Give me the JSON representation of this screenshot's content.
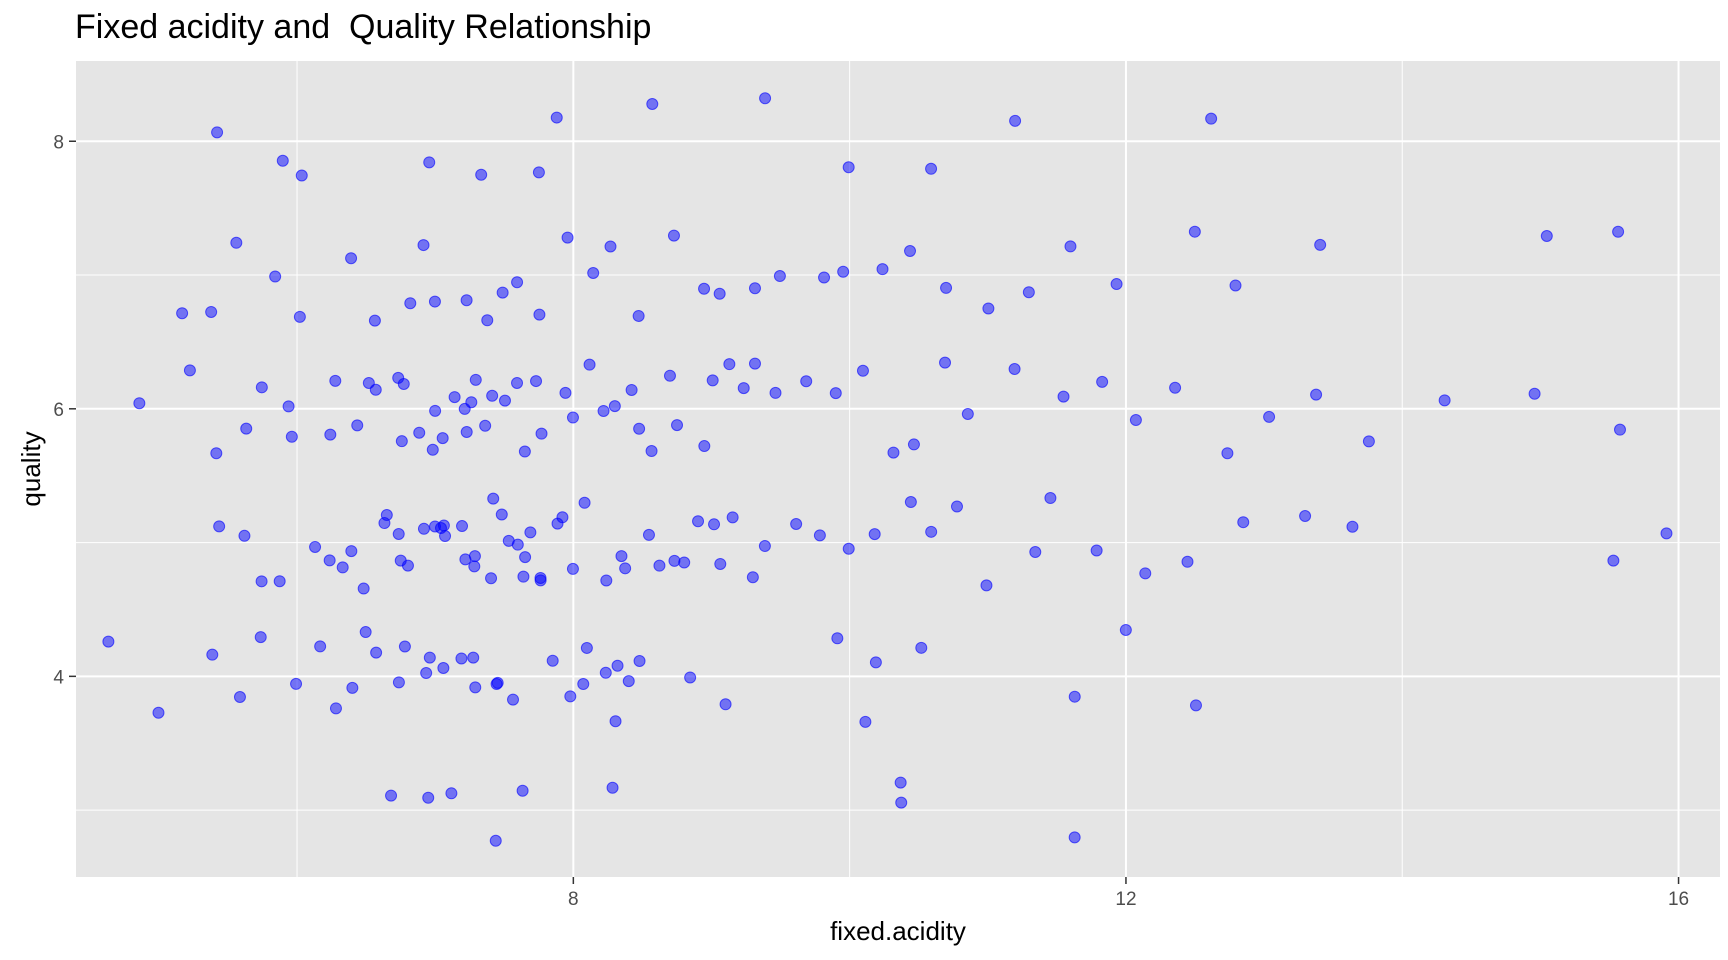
{
  "chart_data": {
    "type": "scatter",
    "title": "Fixed acidity and  Quality Relationship",
    "xlabel": "fixed.acidity",
    "ylabel": "quality",
    "xlim": [
      4.4,
      16.3
    ],
    "ylim": [
      2.5,
      8.6
    ],
    "x_ticks": [
      8,
      12,
      16
    ],
    "y_ticks": [
      4,
      6,
      8
    ],
    "grid": true,
    "panel_background": "#e5e5e5",
    "grid_color": "#ffffff",
    "point_color": "#0000ff",
    "point_opacity": 0.5,
    "jitter": 0.35,
    "note_on_points": "Integer quality scores drawn with vertical jitter; x values estimated from the plot.",
    "series": [
      {
        "y_level": 3,
        "x": [
          6.7,
          6.9,
          7.1,
          7.4,
          7.6,
          8.3,
          10.4,
          10.4,
          11.6
        ]
      },
      {
        "y_level": 4,
        "x": [
          4.6,
          5.0,
          5.4,
          5.6,
          5.7,
          6.0,
          6.2,
          6.3,
          6.4,
          6.5,
          6.6,
          6.7,
          6.8,
          6.9,
          7.0,
          7.1,
          7.2,
          7.3,
          7.3,
          7.4,
          7.5,
          7.6,
          7.9,
          8.0,
          8.1,
          8.1,
          8.2,
          8.3,
          8.3,
          8.4,
          8.5,
          8.8,
          9.1,
          9.9,
          10.1,
          10.2,
          10.5,
          11.6,
          12.0,
          12.5
        ]
      },
      {
        "y_level": 5,
        "x": [
          5.4,
          5.6,
          5.7,
          5.9,
          6.1,
          6.2,
          6.3,
          6.4,
          6.5,
          6.6,
          6.6,
          6.7,
          6.8,
          6.8,
          6.9,
          7.0,
          7.0,
          7.1,
          7.1,
          7.2,
          7.2,
          7.3,
          7.3,
          7.4,
          7.4,
          7.5,
          7.5,
          7.6,
          7.6,
          7.7,
          7.7,
          7.8,
          7.8,
          7.9,
          7.9,
          8.0,
          8.1,
          8.2,
          8.3,
          8.4,
          8.5,
          8.6,
          8.7,
          8.8,
          8.9,
          9.0,
          9.1,
          9.2,
          9.3,
          9.4,
          9.6,
          9.8,
          10.0,
          10.2,
          10.4,
          10.6,
          10.8,
          11.0,
          11.3,
          11.5,
          11.8,
          12.1,
          12.4,
          12.8,
          13.3,
          13.6,
          15.5,
          15.9
        ]
      },
      {
        "y_level": 6,
        "x": [
          4.9,
          5.2,
          5.4,
          5.6,
          5.7,
          5.9,
          6.0,
          6.2,
          6.3,
          6.4,
          6.5,
          6.6,
          6.7,
          6.8,
          6.8,
          6.9,
          7.0,
          7.0,
          7.1,
          7.1,
          7.2,
          7.2,
          7.3,
          7.3,
          7.4,
          7.4,
          7.5,
          7.6,
          7.6,
          7.7,
          7.8,
          7.9,
          8.0,
          8.1,
          8.2,
          8.3,
          8.4,
          8.5,
          8.6,
          8.7,
          8.8,
          8.9,
          9.0,
          9.1,
          9.2,
          9.3,
          9.5,
          9.7,
          9.9,
          10.1,
          10.3,
          10.5,
          10.7,
          10.9,
          11.2,
          11.5,
          11.8,
          12.1,
          12.4,
          12.7,
          13.0,
          13.4,
          13.8,
          14.3,
          15.0,
          15.6
        ]
      },
      {
        "y_level": 7,
        "x": [
          5.2,
          5.4,
          5.6,
          5.8,
          6.0,
          6.4,
          6.6,
          6.8,
          6.9,
          7.0,
          7.2,
          7.4,
          7.5,
          7.6,
          7.8,
          8.0,
          8.1,
          8.3,
          8.5,
          8.7,
          8.9,
          9.1,
          9.3,
          9.5,
          9.8,
          10.0,
          10.2,
          10.4,
          10.7,
          11.0,
          11.3,
          11.6,
          11.9,
          12.5,
          12.8,
          13.4,
          15.0,
          15.6
        ]
      },
      {
        "y_level": 8,
        "x": [
          5.4,
          5.9,
          6.0,
          7.0,
          7.3,
          7.8,
          7.9,
          8.6,
          9.4,
          10.0,
          10.6,
          11.2,
          12.6
        ]
      }
    ]
  }
}
